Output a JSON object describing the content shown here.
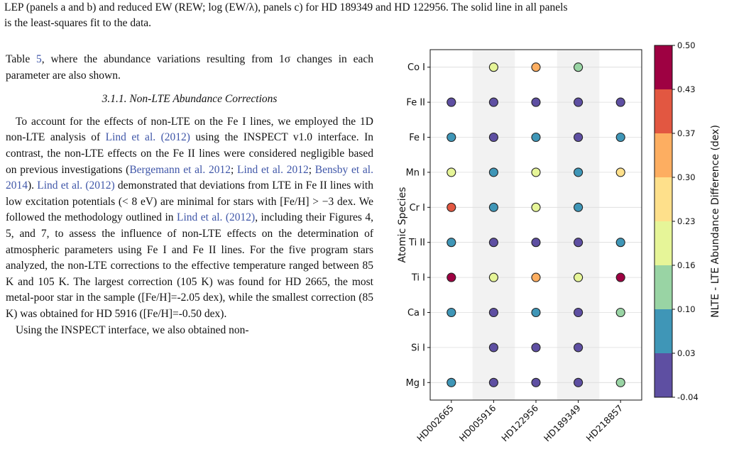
{
  "caption": {
    "line1": "LEP (panels a and b) and reduced EW (REW; log (EW/λ), panels c) for HD 189349 and HD 122956. The solid line in all panels",
    "line2": "is the least-squares fit to the data."
  },
  "body": {
    "para1": {
      "pre": "Table ",
      "link": "5",
      "post": ", where the abundance variations resulting from 1σ changes in each parameter are also shown."
    },
    "subsection_title": "3.1.1.  Non-LTE Abundance Corrections",
    "para2": {
      "t1": "To account for the effects of non-LTE on the Fe I lines, we employed the 1D non-LTE analysis of ",
      "l1": "Lind et al. (2012)",
      "t2": " using the INSPECT v1.0 interface. In contrast, the non-LTE effects on the Fe II lines were considered negligible based on previous investigations (",
      "l2": "Bergemann et al. 2012",
      "t3": "; ",
      "l3": "Lind et al. 2012",
      "t4": "; ",
      "l4": "Bensby et al. 2014",
      "t5": "). ",
      "l5": "Lind et al. (2012)",
      "t6": " demonstrated that deviations from LTE in Fe II lines with low excitation potentials (< 8 eV) are minimal for stars with [Fe/H] > −3 dex. We followed the methodology outlined in ",
      "l6": "Lind et al. (2012)",
      "t7": ", including their Figures 4, 5, and 7, to assess the influence of non-LTE effects on the determination of atmospheric parameters using Fe I and Fe II lines. For the five program stars analyzed, the non-LTE corrections to the effective temperature ranged between 85 K and 105 K. The largest correction (105 K) was found for HD 2665, the most metal-poor star in the sample ([Fe/H]=-2.05 dex), while the smallest correction (85 K) was obtained for HD 5916 ([Fe/H]=-0.50 dex)."
    },
    "para3": "Using the INSPECT interface, we also obtained non-"
  },
  "chart_data": {
    "type": "scatter",
    "ylabel": "Atomic Species",
    "colorbar_label": "NLTE - LTE Abundance Difference (dex)",
    "colorbar_ticks": [
      "0.50",
      "0.43",
      "0.37",
      "0.30",
      "0.23",
      "0.16",
      "0.10",
      "0.03",
      "-0.04"
    ],
    "colorbar_bins": [
      "#5e4fa2",
      "#3f96b7",
      "#99d4a4",
      "#e6f598",
      "#fee08b",
      "#fdae61",
      "#e25741",
      "#9e0142"
    ],
    "stars": [
      "HD002665",
      "HD005916",
      "HD122956",
      "HD189349",
      "HD218857"
    ],
    "species": [
      "Co I",
      "Fe II",
      "Fe I",
      "Mn I",
      "Cr I",
      "Ti II",
      "Ti I",
      "Ca I",
      "Si I",
      "Mg I"
    ],
    "values": [
      [
        null,
        0.2,
        0.33,
        0.12,
        null
      ],
      [
        -0.02,
        -0.02,
        -0.02,
        -0.02,
        -0.02
      ],
      [
        0.05,
        -0.02,
        0.05,
        -0.02,
        0.05
      ],
      [
        0.2,
        0.05,
        0.2,
        0.05,
        0.27
      ],
      [
        0.4,
        0.05,
        0.2,
        0.05,
        null
      ],
      [
        0.05,
        -0.02,
        -0.02,
        -0.02,
        0.05
      ],
      [
        0.47,
        0.2,
        0.33,
        0.2,
        0.47
      ],
      [
        0.05,
        -0.02,
        0.05,
        -0.02,
        0.12
      ],
      [
        null,
        -0.02,
        -0.02,
        -0.02,
        null
      ],
      [
        0.05,
        -0.02,
        -0.02,
        -0.02,
        0.12
      ]
    ],
    "vmin": -0.04,
    "vmax": 0.5,
    "grid": true,
    "shaded_columns": [
      "HD005916",
      "HD189349"
    ]
  }
}
